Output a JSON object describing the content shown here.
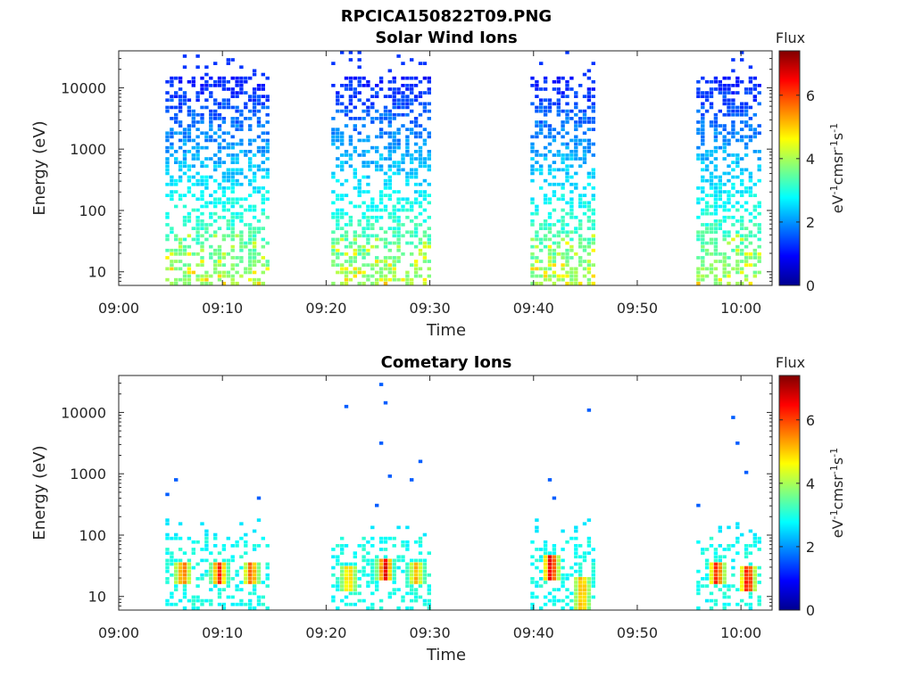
{
  "figure_title": "RPCICA150822T09.PNG",
  "chart_data": [
    {
      "type": "heatmap",
      "title": "Solar Wind Ions",
      "xlabel": "Time",
      "ylabel": "Energy (eV)",
      "y_scale": "log",
      "ylim": [
        6,
        40000
      ],
      "y_ticks": [
        10,
        100,
        1000,
        10000
      ],
      "y_tick_labels": [
        "10",
        "100",
        "1000",
        "10000"
      ],
      "x_ticks": [
        "09:00",
        "09:10",
        "09:20",
        "09:30",
        "09:40",
        "09:50",
        "10:00"
      ],
      "xlim_minutes": [
        0,
        63
      ],
      "colorbar": {
        "title": "Flux",
        "unit": "eV-1cm-2sr-1s-1",
        "range": [
          0,
          7.4
        ],
        "ticks": [
          "0",
          "2",
          "4",
          "6"
        ]
      },
      "blocks": [
        {
          "start": "09:04.5",
          "end": "09:14.2",
          "intensity": 1.0
        },
        {
          "start": "09:20.5",
          "end": "09:30.0",
          "intensity": 1.0
        },
        {
          "start": "09:39.7",
          "end": "09:46.0",
          "intensity": 1.1
        },
        {
          "start": "09:55.7",
          "end": "10:02.0",
          "intensity": 0.95
        }
      ]
    },
    {
      "type": "heatmap",
      "title": "Cometary Ions",
      "xlabel": "Time",
      "ylabel": "Energy (eV)",
      "y_scale": "log",
      "ylim": [
        6,
        40000
      ],
      "y_ticks": [
        10,
        100,
        1000,
        10000
      ],
      "y_tick_labels": [
        "10",
        "100",
        "1000",
        "10000"
      ],
      "x_ticks": [
        "09:00",
        "09:10",
        "09:20",
        "09:30",
        "09:40",
        "09:50",
        "10:00"
      ],
      "xlim_minutes": [
        0,
        63
      ],
      "colorbar": {
        "title": "Flux",
        "unit": "eV-1cm-2sr-1s-1",
        "range": [
          0,
          7.4
        ],
        "ticks": [
          "0",
          "2",
          "4",
          "6"
        ]
      },
      "blocks": [
        {
          "start": "09:04.5",
          "end": "09:14.2"
        },
        {
          "start": "09:20.5",
          "end": "09:30.0"
        },
        {
          "start": "09:39.7",
          "end": "09:46.0"
        },
        {
          "start": "09:55.7",
          "end": "10:02.0"
        }
      ],
      "hot_spots": [
        {
          "time": "09:06.0",
          "energy_low": 15,
          "energy_high": 35,
          "flux": 6.0
        },
        {
          "time": "09:09.5",
          "energy_low": 15,
          "energy_high": 35,
          "flux": 6.4
        },
        {
          "time": "09:12.6",
          "energy_low": 15,
          "energy_high": 35,
          "flux": 6.0
        },
        {
          "time": "09:22.0",
          "energy_low": 12,
          "energy_high": 30,
          "flux": 5.3
        },
        {
          "time": "09:25.5",
          "energy_low": 18,
          "energy_high": 40,
          "flux": 6.8
        },
        {
          "time": "09:28.5",
          "energy_low": 15,
          "energy_high": 35,
          "flux": 5.2
        },
        {
          "time": "09:41.5",
          "energy_low": 18,
          "energy_high": 45,
          "flux": 7.0
        },
        {
          "time": "09:44.5",
          "energy_low": 6,
          "energy_high": 20,
          "flux": 5.5
        },
        {
          "time": "09:57.5",
          "energy_low": 15,
          "energy_high": 35,
          "flux": 6.6
        },
        {
          "time": "10:00.5",
          "energy_low": 12,
          "energy_high": 30,
          "flux": 6.9
        }
      ]
    }
  ]
}
